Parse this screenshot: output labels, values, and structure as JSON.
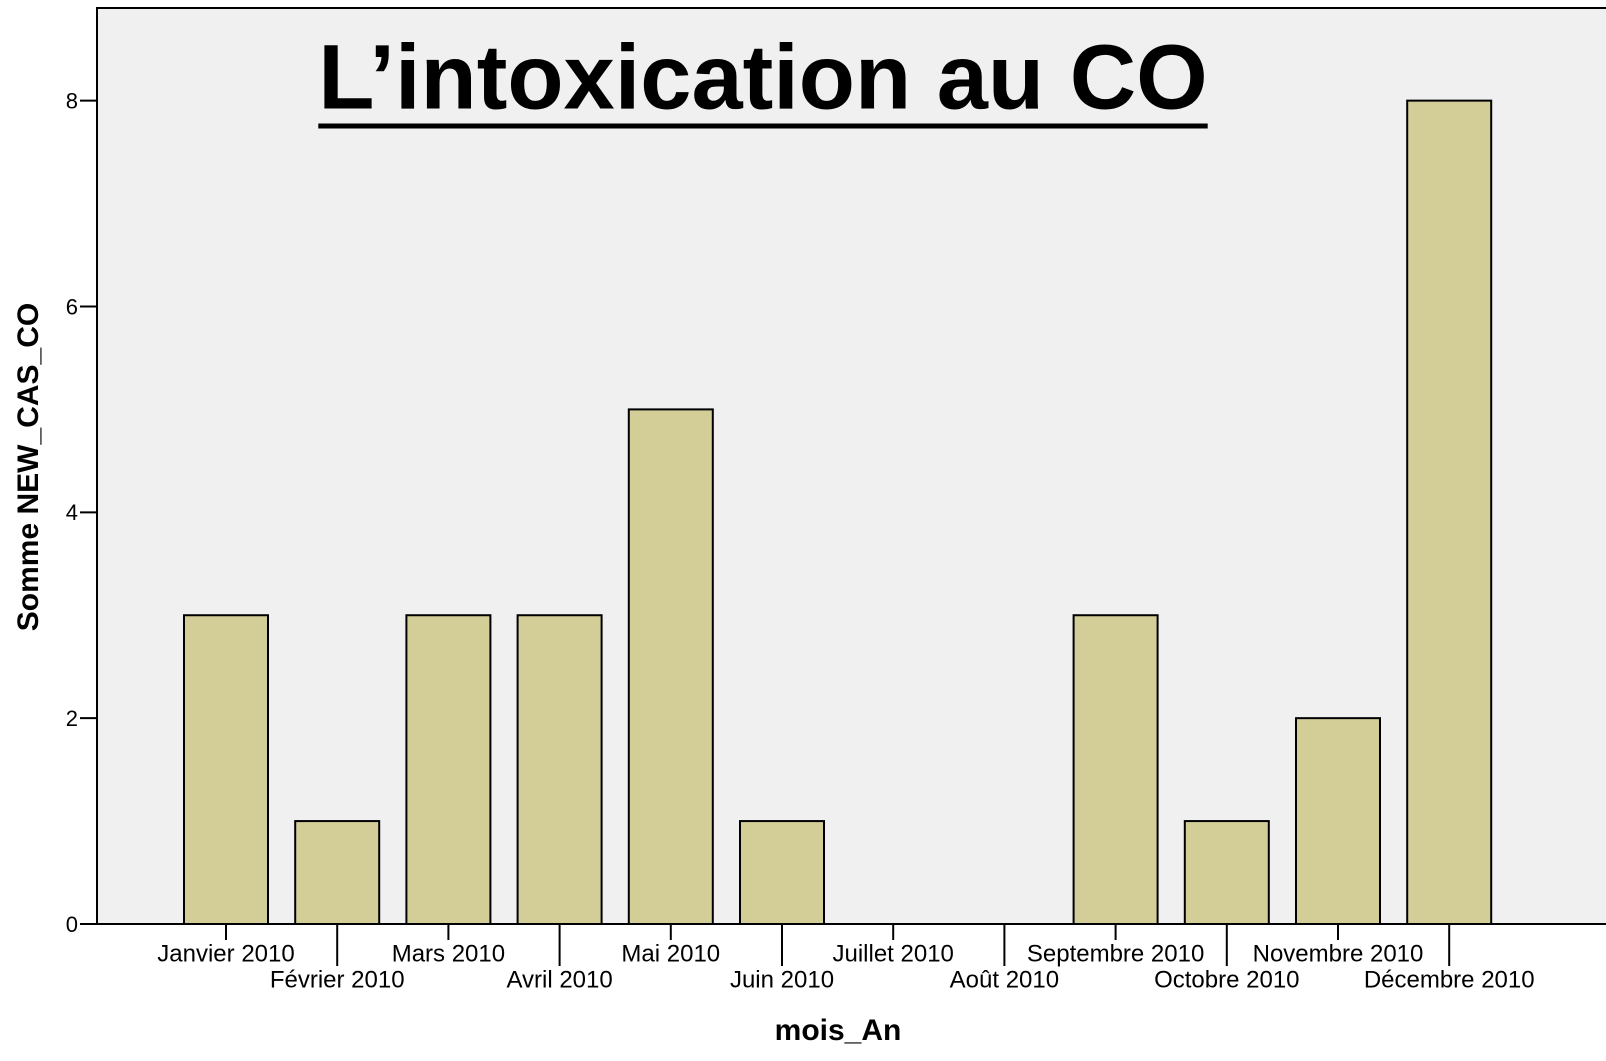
{
  "chart_data": {
    "type": "bar",
    "title": "L’intoxication au CO",
    "x_label": "mois_An",
    "y_label": "Somme NEW_CAS_CO",
    "categories": [
      "Janvier 2010",
      "Février 2010",
      "Mars 2010",
      "Avril 2010",
      "Mai 2010",
      "Juin 2010",
      "Juillet 2010",
      "Août 2010",
      "Septembre 2010",
      "Octobre 2010",
      "Novembre 2010",
      "Décembre 2010"
    ],
    "values": [
      3,
      1,
      3,
      3,
      5,
      1,
      0,
      0,
      3,
      1,
      2,
      8
    ],
    "color": "#d3ce97",
    "ylim": [
      0,
      8.9
    ],
    "yticks": [
      0,
      2,
      4,
      6,
      8
    ],
    "grid": false
  }
}
